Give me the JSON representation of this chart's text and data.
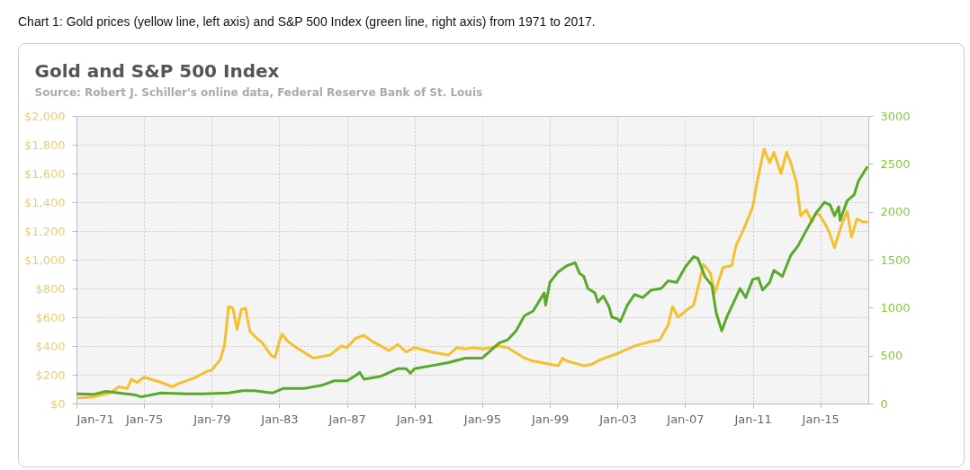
{
  "chart_data": {
    "type": "line",
    "title": "Gold and S&P 500 Index",
    "subtitle": "Source: Robert J. Schiller's online data, Federal Reserve Bank of St. Louis",
    "annotations": [
      "Chart 1: Gold prices (yellow line, left axis) and S&P 500 Index (green line, right axis) from 1971 to 2017."
    ],
    "xlim": [
      "1971-01",
      "2017-11"
    ],
    "xticks": [
      {
        "value": "1971-01",
        "label": "Jan-71"
      },
      {
        "value": "1975-01",
        "label": "Jan-75"
      },
      {
        "value": "1979-01",
        "label": "Jan-79"
      },
      {
        "value": "1983-01",
        "label": "Jan-83"
      },
      {
        "value": "1987-01",
        "label": "Jan-87"
      },
      {
        "value": "1991-01",
        "label": "Jan-91"
      },
      {
        "value": "1995-01",
        "label": "Jan-95"
      },
      {
        "value": "1999-01",
        "label": "Jan-99"
      },
      {
        "value": "2003-01",
        "label": "Jan-03"
      },
      {
        "value": "2007-01",
        "label": "Jan-07"
      },
      {
        "value": "2011-01",
        "label": "Jan-11"
      },
      {
        "value": "2015-01",
        "label": "Jan-15"
      }
    ],
    "ylim": [
      0,
      2000
    ],
    "yticks": [
      {
        "value": 0,
        "label": "$0"
      },
      {
        "value": 200,
        "label": "$200"
      },
      {
        "value": 400,
        "label": "$400"
      },
      {
        "value": 600,
        "label": "$600"
      },
      {
        "value": 800,
        "label": "$800"
      },
      {
        "value": 1000,
        "label": "$1,000"
      },
      {
        "value": 1200,
        "label": "$1,200"
      },
      {
        "value": 1400,
        "label": "$1,400"
      },
      {
        "value": 1600,
        "label": "$1,600"
      },
      {
        "value": 1800,
        "label": "$1,800"
      },
      {
        "value": 2000,
        "label": "$2,000"
      }
    ],
    "y2lim": [
      0,
      3000
    ],
    "y2ticks": [
      0,
      500,
      1000,
      1500,
      2000,
      2500,
      3000
    ],
    "grid": true,
    "marker": "none",
    "line_style": "solid",
    "series": [
      {
        "color": "#f4c030",
        "x": [
          "1971-01",
          "1972-01",
          "1973-01",
          "1973-07",
          "1974-01",
          "1974-04",
          "1974-08",
          "1975-01",
          "1976-01",
          "1976-09",
          "1977-01",
          "1978-01",
          "1978-09",
          "1979-01",
          "1979-07",
          "1979-10",
          "1980-01",
          "1980-04",
          "1980-07",
          "1980-10",
          "1981-01",
          "1981-04",
          "1981-08",
          "1982-01",
          "1982-07",
          "1982-10",
          "1983-01",
          "1983-03",
          "1983-07",
          "1984-01",
          "1985-01",
          "1986-01",
          "1986-09",
          "1987-01",
          "1987-07",
          "1988-01",
          "1988-07",
          "1989-07",
          "1990-01",
          "1990-07",
          "1991-01",
          "1992-01",
          "1993-01",
          "1993-07",
          "1994-01",
          "1994-07",
          "1995-01",
          "1996-01",
          "1996-07",
          "1997-07",
          "1998-01",
          "1999-01",
          "1999-07",
          "1999-10",
          "2000-01",
          "2001-01",
          "2001-07",
          "2002-01",
          "2003-01",
          "2004-01",
          "2005-01",
          "2005-07",
          "2006-01",
          "2006-04",
          "2006-08",
          "2007-01",
          "2007-07",
          "2007-10",
          "2008-02",
          "2008-07",
          "2008-10",
          "2009-04",
          "2009-10",
          "2010-01",
          "2010-07",
          "2011-01",
          "2011-04",
          "2011-09",
          "2012-01",
          "2012-04",
          "2012-09",
          "2013-01",
          "2013-04",
          "2013-08",
          "2013-11",
          "2014-03",
          "2014-07",
          "2014-10",
          "2015-01",
          "2015-07",
          "2015-11",
          "2016-04",
          "2016-08",
          "2016-11",
          "2017-03",
          "2017-07",
          "2017-10"
        ],
        "values": [
          38,
          46,
          74,
          116,
          105,
          168,
          147,
          183,
          147,
          116,
          137,
          179,
          221,
          232,
          305,
          400,
          674,
          663,
          516,
          653,
          663,
          505,
          463,
          421,
          337,
          320,
          432,
          484,
          432,
          389,
          316,
          337,
          400,
          389,
          453,
          474,
          432,
          368,
          411,
          358,
          389,
          358,
          337,
          389,
          379,
          389,
          379,
          400,
          389,
          316,
          295,
          274,
          263,
          316,
          295,
          263,
          274,
          305,
          347,
          400,
          432,
          442,
          547,
          674,
          600,
          642,
          684,
          800,
          968,
          905,
          768,
          947,
          958,
          1095,
          1221,
          1368,
          1537,
          1768,
          1674,
          1747,
          1600,
          1747,
          1674,
          1537,
          1305,
          1347,
          1263,
          1326,
          1305,
          1200,
          1084,
          1242,
          1337,
          1158,
          1284,
          1263,
          1263
        ]
      },
      {
        "color": "#5aaa2a",
        "axis": "y2",
        "x": [
          "1971-01",
          "1972-01",
          "1972-10",
          "1973-07",
          "1974-07",
          "1974-11",
          "1976-01",
          "1977-07",
          "1978-07",
          "1980-01",
          "1980-11",
          "1981-07",
          "1982-08",
          "1983-04",
          "1984-07",
          "1985-07",
          "1986-04",
          "1987-01",
          "1987-08",
          "1987-10",
          "1988-01",
          "1989-01",
          "1990-01",
          "1990-07",
          "1990-10",
          "1991-01",
          "1992-01",
          "1993-01",
          "1994-01",
          "1995-01",
          "1995-07",
          "1996-01",
          "1996-07",
          "1997-01",
          "1997-07",
          "1998-01",
          "1998-07",
          "1998-09",
          "1998-10",
          "1999-01",
          "1999-07",
          "2000-01",
          "2000-07",
          "2000-10",
          "2001-01",
          "2001-04",
          "2001-09",
          "2001-11",
          "2002-03",
          "2002-07",
          "2002-09",
          "2003-01",
          "2003-03",
          "2003-08",
          "2004-01",
          "2004-07",
          "2005-01",
          "2005-08",
          "2006-01",
          "2006-07",
          "2007-01",
          "2007-07",
          "2007-10",
          "2008-03",
          "2008-08",
          "2008-11",
          "2009-03",
          "2009-07",
          "2010-01",
          "2010-04",
          "2010-08",
          "2011-01",
          "2011-05",
          "2011-08",
          "2012-01",
          "2012-04",
          "2012-10",
          "2013-04",
          "2013-09",
          "2014-04",
          "2014-10",
          "2015-04",
          "2015-08",
          "2015-11",
          "2016-02",
          "2016-03",
          "2016-08",
          "2017-01",
          "2017-04",
          "2017-10"
        ],
        "values": [
          101,
          95,
          126,
          110,
          88,
          69,
          110,
          101,
          101,
          110,
          133,
          133,
          110,
          158,
          158,
          189,
          237,
          237,
          300,
          325,
          253,
          284,
          363,
          363,
          316,
          363,
          395,
          426,
          474,
          474,
          553,
          632,
          663,
          758,
          916,
          963,
          1105,
          1153,
          1026,
          1263,
          1374,
          1437,
          1468,
          1358,
          1326,
          1200,
          1153,
          1058,
          1121,
          1010,
          900,
          884,
          853,
          1026,
          1137,
          1105,
          1184,
          1200,
          1279,
          1263,
          1421,
          1532,
          1516,
          1326,
          1232,
          947,
          758,
          916,
          1105,
          1200,
          1105,
          1295,
          1310,
          1184,
          1263,
          1389,
          1326,
          1547,
          1642,
          1832,
          1989,
          2100,
          2068,
          1958,
          2052,
          1910,
          2116,
          2179,
          2321,
          2463
        ]
      }
    ]
  }
}
